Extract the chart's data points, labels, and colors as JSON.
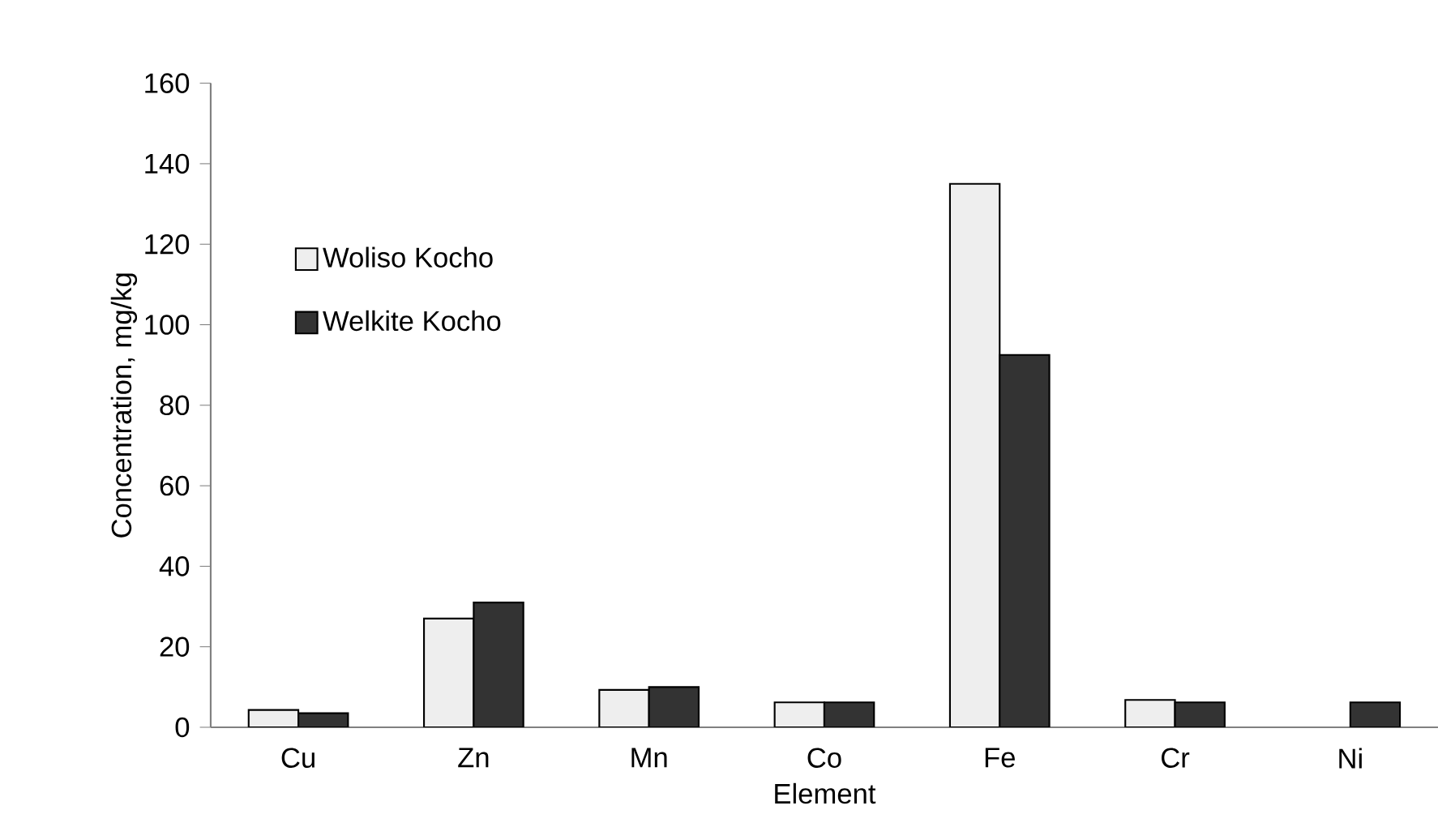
{
  "chart_data": {
    "type": "bar",
    "xlabel": "Element",
    "ylabel": "Concentration, mg/kg",
    "categories": [
      "Cu",
      "Zn",
      "Mn",
      "Co",
      "Fe",
      "Cr",
      "Ni"
    ],
    "series": [
      {
        "name": "Woliso Kocho",
        "color": "#eeeeee",
        "values": [
          4.3,
          27,
          9.3,
          6.2,
          135,
          6.8,
          null
        ]
      },
      {
        "name": "Welkite Kocho",
        "color": "#333333",
        "values": [
          3.5,
          31,
          10,
          6.2,
          92.5,
          6.2,
          6.2
        ]
      }
    ],
    "ylim": [
      0,
      160
    ],
    "yticks": [
      0,
      20,
      40,
      60,
      80,
      100,
      120,
      140,
      160
    ],
    "legend": "top left"
  }
}
